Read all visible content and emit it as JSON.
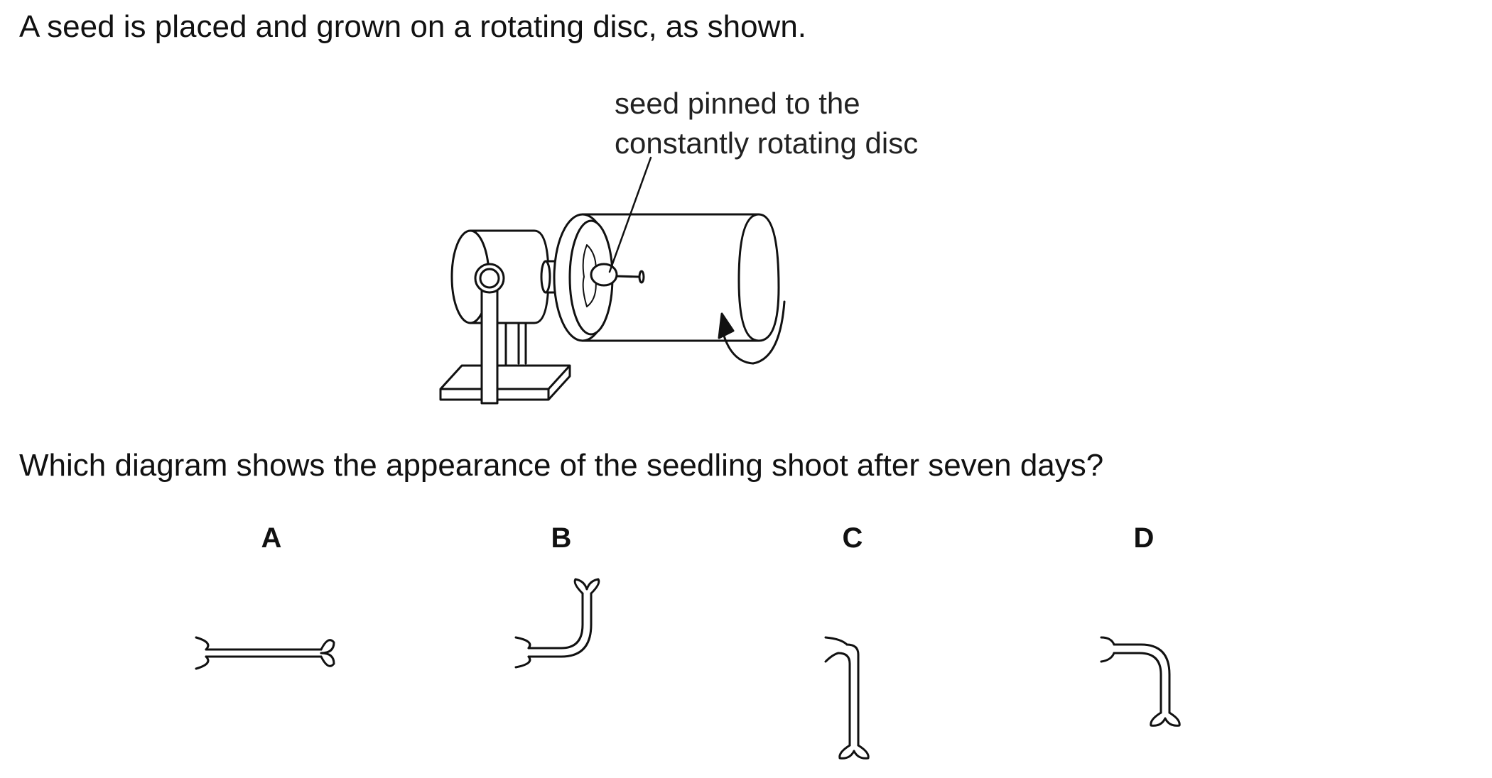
{
  "intro_text": "A seed is placed and grown on a rotating disc, as shown.",
  "callout": {
    "line1": "seed pinned to the",
    "line2": "constantly rotating disc"
  },
  "question_text": "Which diagram shows the appearance of the seedling shoot after seven days?",
  "options": [
    "A",
    "B",
    "C",
    "D"
  ]
}
